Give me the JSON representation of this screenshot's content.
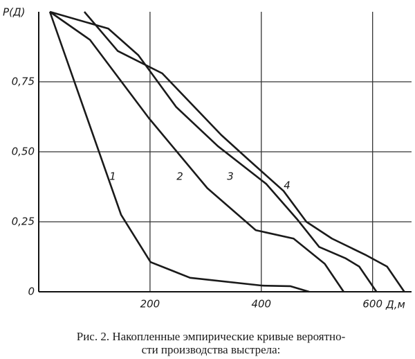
{
  "chart_data": {
    "type": "line",
    "y_label": "P(Д)",
    "x_label": "Д,м",
    "caption": [
      "Рис. 2. Накопленные эмпирические кривые вероятно-",
      "сти производства выстрела:"
    ],
    "xlim": [
      0,
      670
    ],
    "ylim": [
      0,
      1
    ],
    "xticks": [
      200,
      400,
      600
    ],
    "yticks": [
      0,
      {
        "value": 0.25,
        "label": "0,25"
      },
      {
        "value": 0.5,
        "label": "0,50"
      },
      {
        "value": 0.75,
        "label": "0,75"
      }
    ],
    "grid": true,
    "color": "#1a1a1a",
    "series": [
      {
        "name": "1",
        "x": [
          20,
          148,
          201,
          272,
          402,
          452,
          486
        ],
        "values": [
          1,
          0.275,
          0.106,
          0.05,
          0.022,
          0.02,
          0
        ]
      },
      {
        "name": "2",
        "x": [
          20,
          92,
          198,
          303,
          390,
          458,
          514,
          548
        ],
        "values": [
          1,
          0.9,
          0.62,
          0.37,
          0.22,
          0.19,
          0.1,
          0
        ]
      },
      {
        "name": "3",
        "x": [
          20,
          125,
          179,
          247,
          322,
          409,
          464,
          504,
          551,
          576,
          607
        ],
        "values": [
          1,
          0.94,
          0.845,
          0.66,
          0.52,
          0.385,
          0.26,
          0.16,
          0.12,
          0.09,
          0
        ]
      },
      {
        "name": "4",
        "x": [
          82,
          142,
          222,
          328,
          378,
          440,
          481,
          527,
          589,
          626,
          657
        ],
        "values": [
          1,
          0.86,
          0.78,
          0.56,
          0.47,
          0.36,
          0.25,
          0.19,
          0.13,
          0.09,
          0
        ]
      }
    ]
  }
}
